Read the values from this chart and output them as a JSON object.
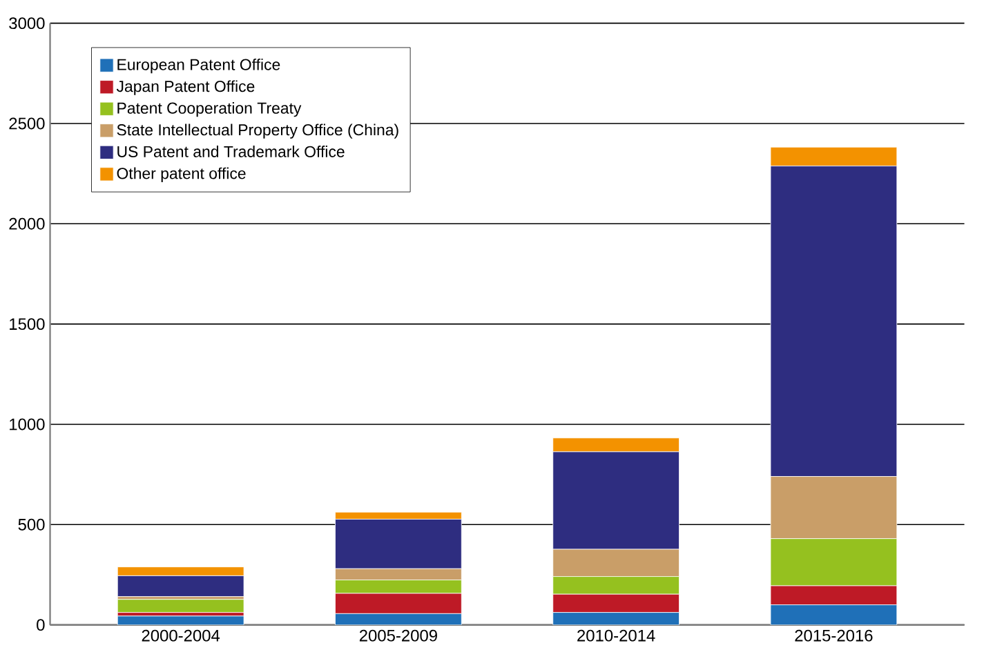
{
  "chart_data": {
    "type": "bar",
    "stacked": true,
    "categories": [
      "2000-2004",
      "2005-2009",
      "2010-2014",
      "2015-2016"
    ],
    "series": [
      {
        "name": "European Patent Office",
        "color": "#1f70b8",
        "values": [
          44,
          56,
          62,
          100
        ]
      },
      {
        "name": "Japan Patent Office",
        "color": "#be1a26",
        "values": [
          18,
          101,
          91,
          95
        ]
      },
      {
        "name": "Patent Cooperation Treaty",
        "color": "#95c11f",
        "values": [
          65,
          67,
          88,
          235
        ]
      },
      {
        "name": "State Intellectual Property Office (China)",
        "color": "#c99e68",
        "values": [
          14,
          56,
          136,
          310
        ]
      },
      {
        "name": "US Patent and Trademark Office",
        "color": "#2e2d80",
        "values": [
          104,
          247,
          486,
          1548
        ]
      },
      {
        "name": "Other patent office",
        "color": "#f39200",
        "values": [
          44,
          35,
          69,
          94
        ]
      }
    ],
    "ylim": [
      0,
      3000
    ],
    "yticks": [
      0,
      500,
      1000,
      1500,
      2000,
      2500,
      3000
    ],
    "grid": "y",
    "legend": "top left"
  }
}
